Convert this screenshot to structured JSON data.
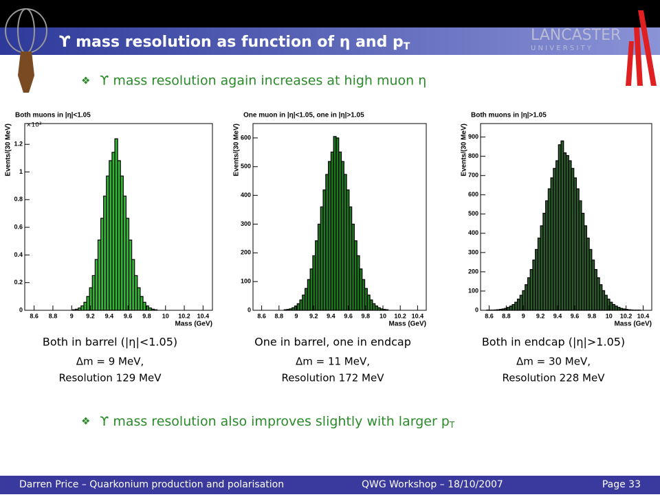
{
  "header": {
    "title": "ϒ mass resolution as function of η and p",
    "title_sub": "T",
    "logo_name": "LANCASTER",
    "logo_sub": "U N I V E R S I T Y"
  },
  "bullets": [
    {
      "text": "ϒ mass resolution again increases at high muon η"
    },
    {
      "text": "ϒ mass resolution also improves slightly with larger p",
      "sub": "T"
    }
  ],
  "captions": [
    {
      "line1": "Both in barrel (|η|<1.05)",
      "line2": "Δm = 9 MeV,",
      "line3": "Resolution 129 MeV"
    },
    {
      "line1": "One in barrel, one in endcap",
      "line2": "Δm = 11 MeV,",
      "line3": "Resolution 172 MeV"
    },
    {
      "line1": "Both in endcap (|η|>1.05)",
      "line2": "Δm = 30 MeV,",
      "line3": "Resolution 228 MeV"
    }
  ],
  "footer": {
    "left": "Darren Price – Quarkonium production and polarisation",
    "center": "QWG Workshop – 18/10/2007",
    "right": "Page 33"
  },
  "chart_data": [
    {
      "type": "histogram",
      "title": "Both muons in |η|<1.05",
      "x_label": "Mass (GeV)",
      "y_label": "Events/(30 MeV)",
      "y_multiplier": "×10³",
      "color": "#35b535",
      "bins": [
        9.01,
        9.04,
        9.07,
        9.1,
        9.13,
        9.16,
        9.19,
        9.22,
        9.25,
        9.28,
        9.31,
        9.34,
        9.37,
        9.4,
        9.43,
        9.46,
        9.49,
        9.52,
        9.55,
        9.58,
        9.61,
        9.64,
        9.67,
        9.7,
        9.73,
        9.76,
        9.79,
        9.82,
        9.85,
        9.88,
        9.91
      ],
      "values": [
        0.004,
        0.008,
        0.017,
        0.032,
        0.058,
        0.1,
        0.163,
        0.251,
        0.367,
        0.508,
        0.665,
        0.826,
        0.971,
        1.082,
        1.142,
        1.24,
        1.082,
        0.971,
        0.826,
        0.665,
        0.508,
        0.367,
        0.251,
        0.163,
        0.1,
        0.058,
        0.032,
        0.017,
        0.008,
        0.004
      ],
      "xlim": [
        8.5,
        10.5
      ],
      "xticks": [
        8.6,
        8.8,
        9,
        9.2,
        9.4,
        9.6,
        9.8,
        10,
        10.2,
        10.4
      ],
      "ylim": [
        0,
        1.35
      ],
      "yticks": [
        0,
        0.2,
        0.4,
        0.6,
        0.8,
        1,
        1.2
      ]
    },
    {
      "type": "histogram",
      "title": "One muon in |η|<1.05, one in |η|>1.05",
      "x_label": "Mass (GeV)",
      "y_label": "Events/(30 MeV)",
      "color": "#1f7a1f",
      "bins": [
        8.86,
        8.89,
        8.92,
        8.95,
        8.98,
        9.01,
        9.04,
        9.07,
        9.1,
        9.13,
        9.16,
        9.19,
        9.22,
        9.25,
        9.28,
        9.31,
        9.34,
        9.37,
        9.4,
        9.43,
        9.46,
        9.49,
        9.52,
        9.55,
        9.58,
        9.61,
        9.64,
        9.67,
        9.7,
        9.73,
        9.76,
        9.79,
        9.82,
        9.85,
        9.88,
        9.91,
        9.94,
        9.97,
        10,
        10.03,
        10.06
      ],
      "values": [
        2,
        3,
        5,
        9,
        15,
        23,
        36,
        53,
        76,
        107,
        144,
        190,
        242,
        300,
        360,
        419,
        473,
        518,
        551,
        605,
        600,
        551,
        518,
        473,
        419,
        360,
        300,
        242,
        190,
        144,
        107,
        76,
        53,
        36,
        23,
        15,
        9,
        5,
        3,
        2
      ],
      "xlim": [
        8.5,
        10.5
      ],
      "xticks": [
        8.6,
        8.8,
        9,
        9.2,
        9.4,
        9.6,
        9.8,
        10,
        10.2,
        10.4
      ],
      "ylim": [
        0,
        650
      ],
      "yticks": [
        0,
        100,
        200,
        300,
        400,
        500,
        600
      ]
    },
    {
      "type": "histogram",
      "title": "Both muons in |η|>1.05",
      "x_label": "Mass (GeV)",
      "y_label": "Events/(30 MeV)",
      "color": "#2b5a2b",
      "bins": [
        8.57,
        8.6,
        8.63,
        8.66,
        8.69,
        8.72,
        8.75,
        8.78,
        8.81,
        8.84,
        8.87,
        8.9,
        8.93,
        8.96,
        8.99,
        9.02,
        9.05,
        9.08,
        9.11,
        9.14,
        9.17,
        9.2,
        9.23,
        9.26,
        9.29,
        9.32,
        9.35,
        9.38,
        9.41,
        9.44,
        9.47,
        9.5,
        9.53,
        9.56,
        9.59,
        9.62,
        9.65,
        9.68,
        9.71,
        9.74,
        9.77,
        9.8,
        9.83,
        9.86,
        9.89,
        9.92,
        9.95,
        9.98,
        10.01,
        10.04,
        10.07,
        10.1,
        10.13,
        10.16,
        10.19,
        10.22,
        10.25,
        10.28,
        10.31,
        10.34,
        10.37
      ],
      "values": [
        1,
        1,
        1,
        2,
        3,
        5,
        7,
        10,
        15,
        22,
        30,
        42,
        58,
        78,
        102,
        133,
        169,
        212,
        261,
        316,
        375,
        439,
        504,
        569,
        631,
        688,
        737,
        777,
        860,
        880,
        818,
        804,
        777,
        737,
        688,
        631,
        569,
        504,
        439,
        375,
        316,
        261,
        212,
        169,
        133,
        102,
        78,
        58,
        42,
        30,
        22,
        15,
        10,
        7,
        5,
        3,
        2,
        1,
        1,
        1
      ],
      "xlim": [
        8.5,
        10.5
      ],
      "xticks": [
        8.6,
        8.8,
        9,
        9.2,
        9.4,
        9.6,
        9.8,
        10,
        10.2,
        10.4
      ],
      "ylim": [
        0,
        970
      ],
      "yticks": [
        0,
        100,
        200,
        300,
        400,
        500,
        600,
        700,
        800,
        900
      ]
    }
  ]
}
